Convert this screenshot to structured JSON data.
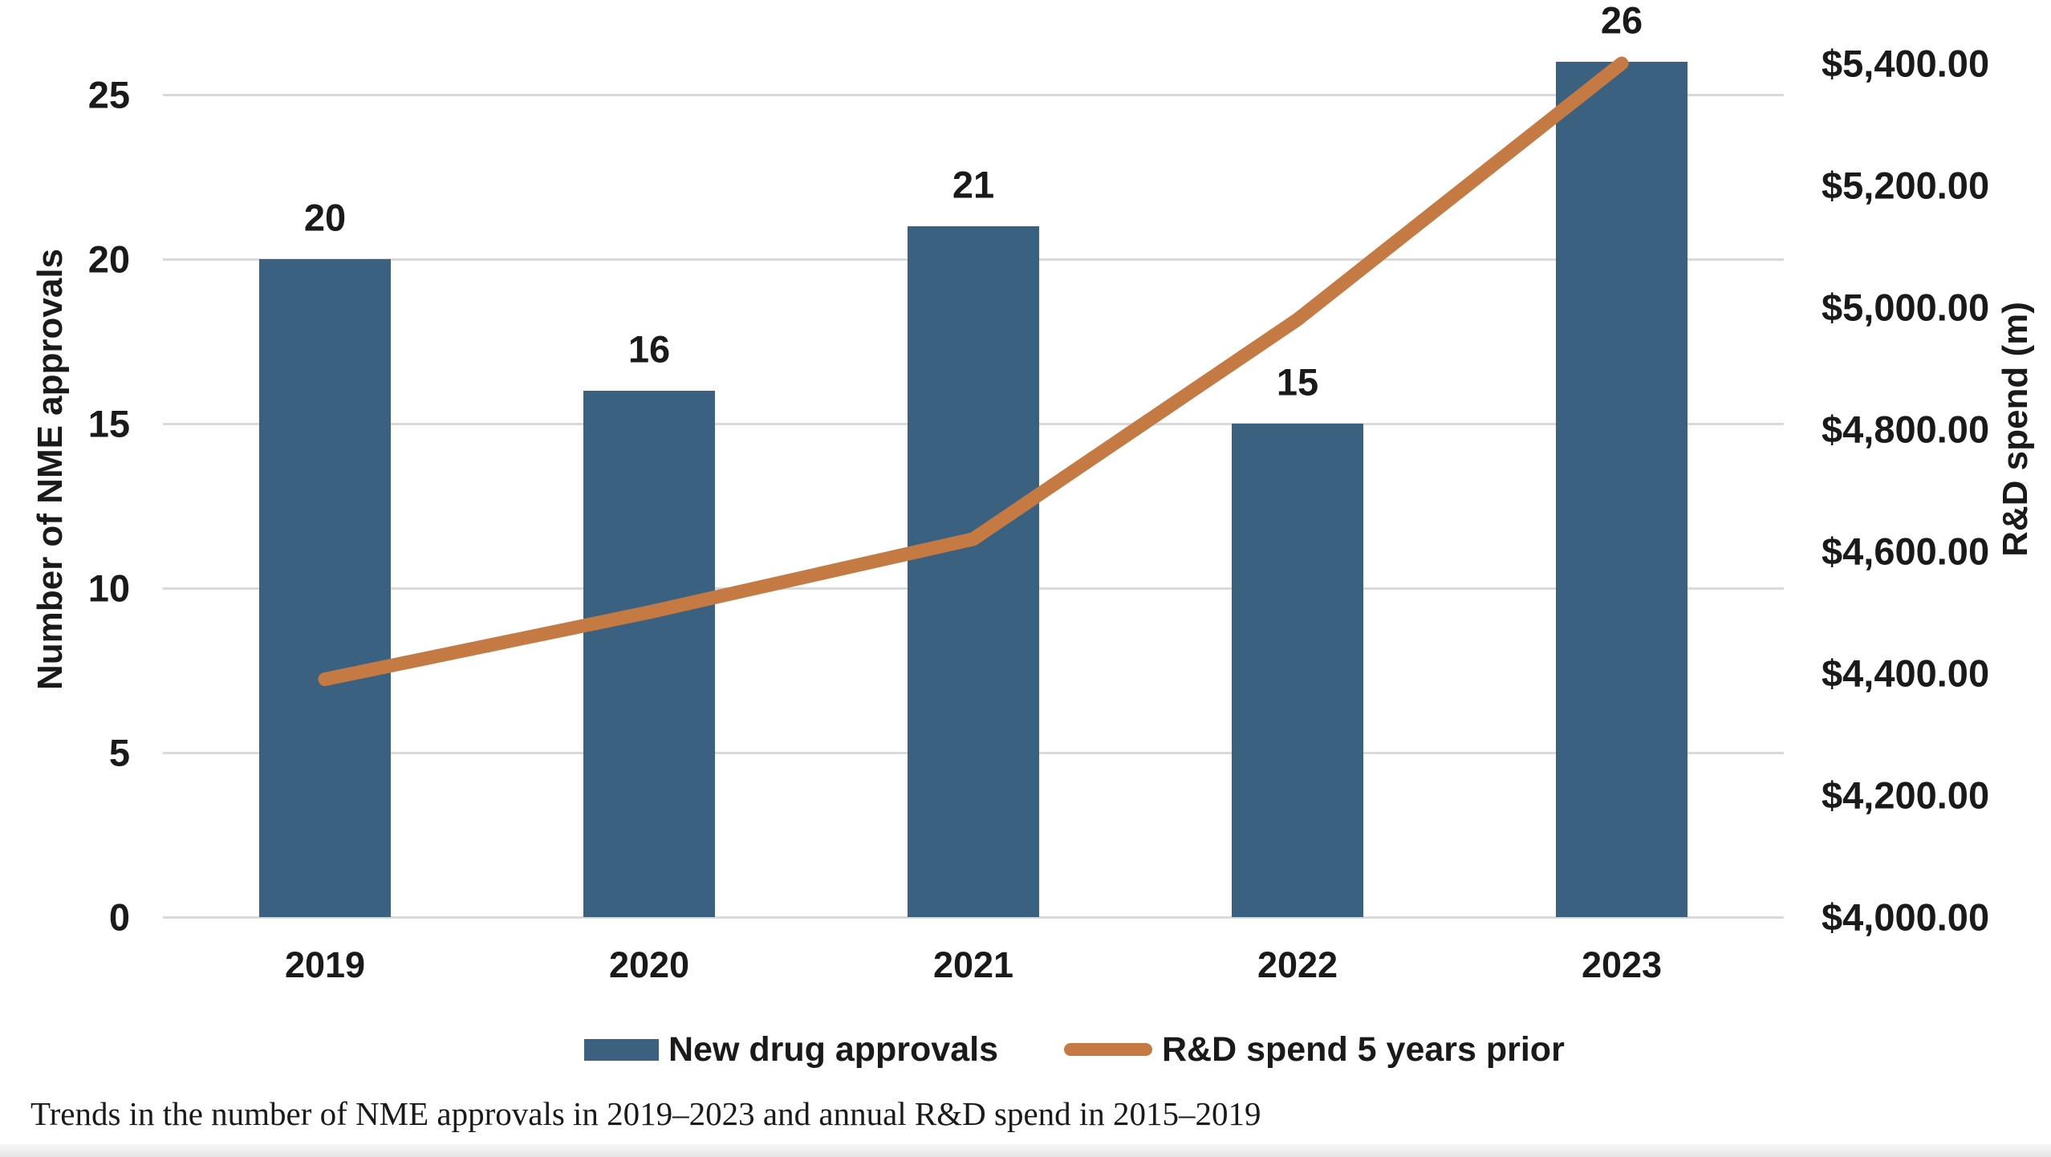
{
  "chart_data": {
    "type": "combo",
    "title": "",
    "categories": [
      "2019",
      "2020",
      "2021",
      "2022",
      "2023"
    ],
    "series": [
      {
        "name": "New drug approvals",
        "type": "bar",
        "axis": "left",
        "values": [
          20,
          16,
          21,
          15,
          26
        ],
        "data_labels": [
          "20",
          "16",
          "21",
          "15",
          "26"
        ],
        "color": "#3b6180"
      },
      {
        "name": "R&D spend 5 years prior",
        "type": "line",
        "axis": "right",
        "values": [
          4390,
          4500,
          4620,
          4980,
          5400
        ],
        "color": "#c67a43"
      }
    ],
    "left_axis": {
      "title": "Number of NME approvals",
      "min": 0,
      "max": 25,
      "ticks": [
        0,
        5,
        10,
        15,
        20,
        25
      ]
    },
    "right_axis": {
      "title": "R&D spend (m)",
      "min": 4000,
      "max": 5400,
      "tick_values": [
        4000,
        4200,
        4400,
        4600,
        4800,
        5000,
        5200,
        5400
      ],
      "ticks": [
        "$4,000.00",
        "$4,200.00",
        "$4,400.00",
        "$4,600.00",
        "$4,800.00",
        "$5,000.00",
        "$5,200.00",
        "$5,400.00"
      ]
    },
    "gridlines": true,
    "legend_position": "bottom"
  },
  "legend": {
    "bar_label": "New drug approvals",
    "line_label": "R&D spend 5 years prior"
  },
  "caption": "Trends in the number of NME approvals in 2019–2023 and annual R&D spend in 2015–2019",
  "colors": {
    "bar": "#3b6180",
    "line": "#c67a43",
    "gridline": "#d9d9d9",
    "text": "#1a1a1a",
    "background": "#ffffff",
    "bottom_band": "#e5e5e5"
  }
}
